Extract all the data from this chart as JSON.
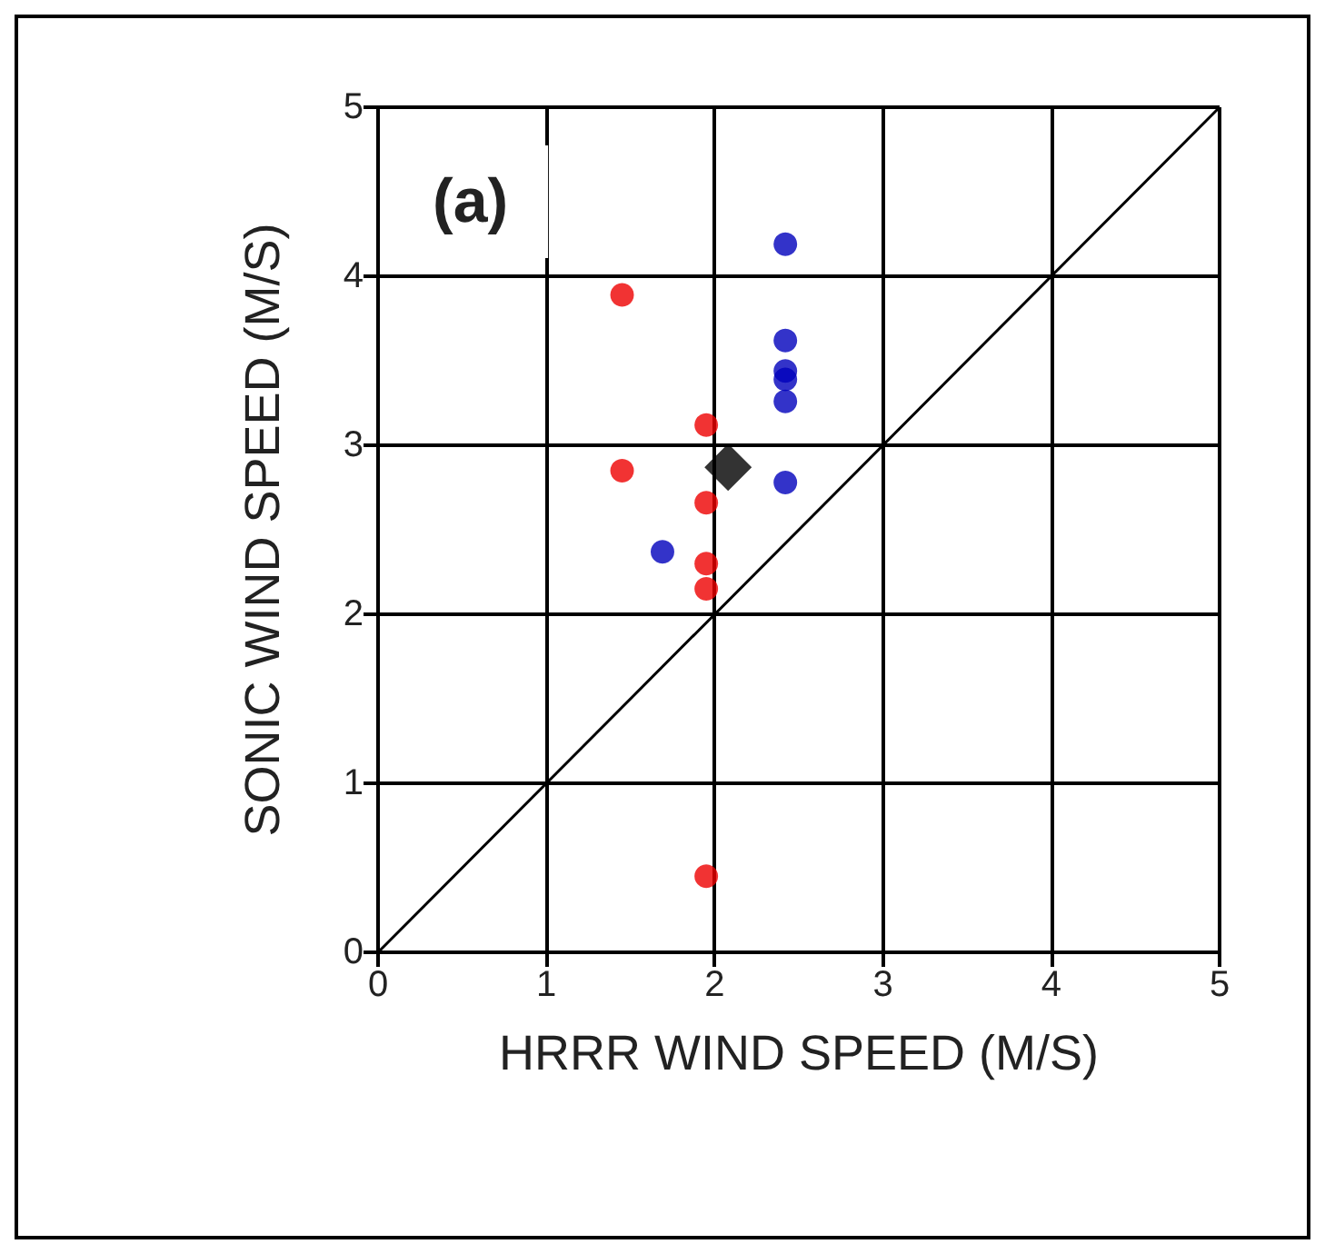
{
  "chart_data": {
    "type": "scatter",
    "xlabel": "HRRR WIND SPEED (M/S)",
    "ylabel": "SONIC WIND SPEED (M/S)",
    "annotations": [
      "(a)"
    ],
    "xlim": [
      0,
      5
    ],
    "ylim": [
      0,
      5
    ],
    "xticks": [
      0,
      1,
      2,
      3,
      4,
      5
    ],
    "yticks": [
      0,
      1,
      2,
      3,
      4,
      5
    ],
    "grid": true,
    "series": [
      {
        "color": "#ee0000",
        "marker": "circle",
        "x": [
          1.45,
          1.45,
          1.95,
          1.95,
          1.95,
          1.95,
          1.95
        ],
        "values": [
          3.89,
          2.85,
          3.12,
          2.66,
          2.3,
          2.15,
          0.45
        ]
      },
      {
        "color": "#0000bb",
        "marker": "circle",
        "x": [
          2.42,
          2.42,
          2.42,
          2.42,
          2.42,
          2.42,
          1.69
        ],
        "values": [
          4.19,
          3.62,
          3.44,
          3.39,
          3.26,
          2.78,
          2.37
        ]
      },
      {
        "color": "#000000",
        "marker": "diamond",
        "x": [
          2.08
        ],
        "values": [
          2.87
        ]
      },
      {
        "type": "line",
        "color": "#000000",
        "marker": "none",
        "x": [
          0,
          5
        ],
        "values": [
          0,
          5
        ]
      }
    ]
  }
}
